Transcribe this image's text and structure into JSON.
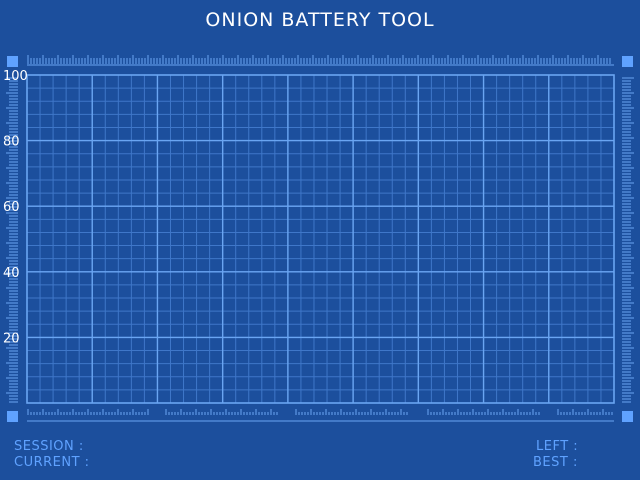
{
  "app": {
    "title": "ONION BATTERY TOOL"
  },
  "chart_data": {
    "type": "line",
    "ylim": [
      0,
      100
    ],
    "yticks": [
      "100",
      "80",
      "60",
      "40",
      "20"
    ],
    "grid": true,
    "series": []
  },
  "footer": {
    "session_label": "SESSION :",
    "current_label": "CURRENT :",
    "left_label": "LEFT :",
    "best_label": "BEST :"
  },
  "colors": {
    "background": "#1c4f9d",
    "accent": "#5fa2ff",
    "title": "#ffffff"
  }
}
